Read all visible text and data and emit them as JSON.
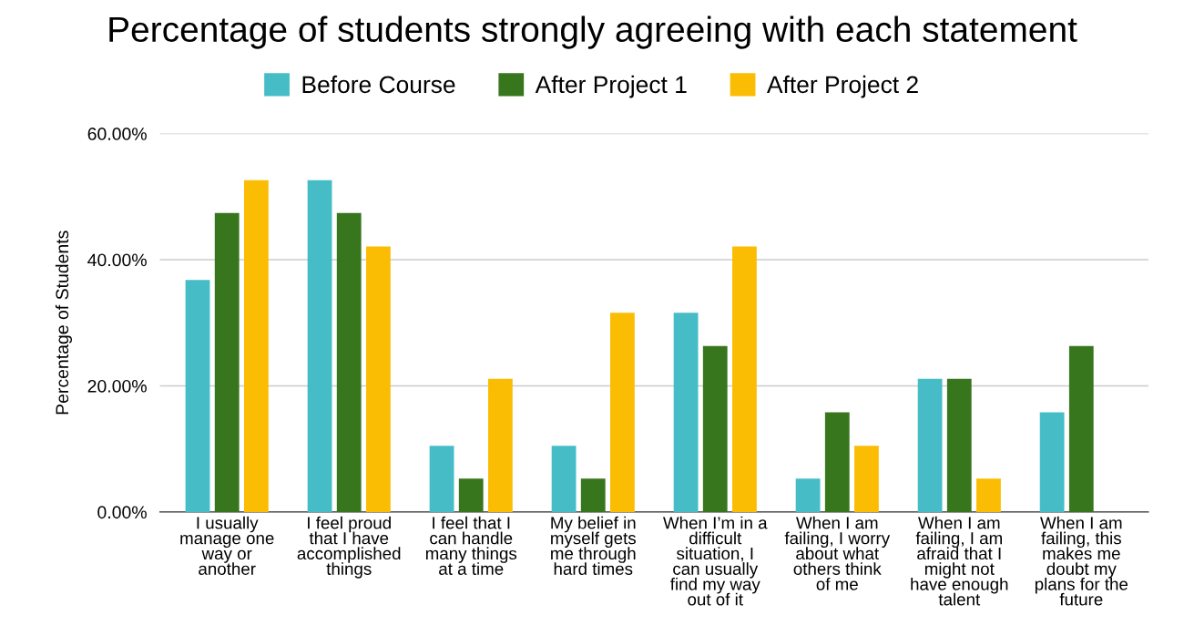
{
  "chart_data": {
    "type": "bar",
    "title": "Percentage of students strongly agreeing with each statement",
    "ylabel": "Percentage of Students",
    "categories": [
      "I usually\nmanage one\nway or\nanother",
      "I feel proud\nthat I have\naccomplished\nthings",
      "I feel that I\ncan handle\nmany things\nat a time",
      "My belief in\nmyself gets\nme through\nhard times",
      "When I’m in a\ndifficult\nsituation, I\ncan usually\nfind my way\nout of it",
      "When I am\nfailing, I worry\nabout what\nothers think\nof me",
      "When I am\nfailing, I am\nafraid that I\nmight not\nhave enough\ntalent",
      "When I am\nfailing, this\nmakes me\ndoubt my\nplans for the\nfuture"
    ],
    "series": [
      {
        "name": "Before Course",
        "color": "#46bdc6",
        "values": [
          36.8,
          52.6,
          10.5,
          10.5,
          31.6,
          5.3,
          21.1,
          15.8
        ]
      },
      {
        "name": "After Project 1",
        "color": "#38761d",
        "values": [
          47.4,
          47.4,
          5.3,
          5.3,
          26.3,
          15.8,
          21.1,
          26.3
        ]
      },
      {
        "name": "After Project 2",
        "color": "#fbbc04",
        "values": [
          52.6,
          42.1,
          21.1,
          31.6,
          42.1,
          10.5,
          5.3,
          0
        ]
      }
    ],
    "ylim": [
      0,
      60
    ],
    "yticks": [
      {
        "value": 0,
        "label": "0.00%"
      },
      {
        "value": 20,
        "label": "20.00%"
      },
      {
        "value": 40,
        "label": "40.00%"
      },
      {
        "value": 60,
        "label": "60.00%"
      }
    ],
    "grid": "y",
    "legend": "top"
  }
}
